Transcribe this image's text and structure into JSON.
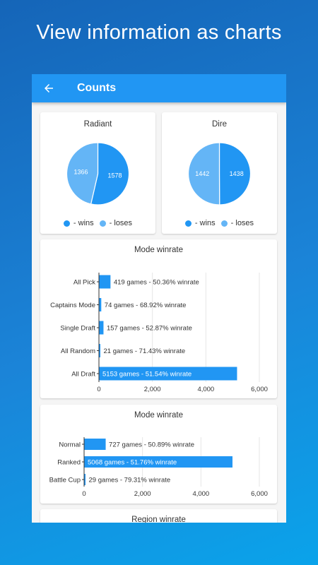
{
  "promo_title": "View information as charts",
  "appbar": {
    "title": "Counts",
    "back_icon": "arrow-back-icon"
  },
  "colors": {
    "primary": "#2196f3",
    "wins": "#2196f3",
    "loses": "#64b5f6"
  },
  "legend": {
    "wins": "- wins",
    "loses": "- loses"
  },
  "chart_data": [
    {
      "type": "pie",
      "title": "Radiant",
      "labels": [
        "- wins",
        "- loses"
      ],
      "values": [
        1578,
        1366
      ]
    },
    {
      "type": "pie",
      "title": "Dire",
      "labels": [
        "- wins",
        "- loses"
      ],
      "values": [
        1438,
        1442
      ]
    },
    {
      "type": "bar",
      "orientation": "horizontal",
      "title": "Mode winrate",
      "categories": [
        "All Pick",
        "Captains Mode",
        "Single Draft",
        "All Random",
        "All Draft"
      ],
      "values": [
        419,
        74,
        157,
        21,
        5153
      ],
      "data_labels": [
        "419 games - 50.36% winrate",
        "74 games - 68.92% winrate",
        "157 games - 52.87% winrate",
        "21 games - 71.43% winrate",
        "5153 games - 51.54% winrate"
      ],
      "xlim": [
        0,
        6000
      ],
      "xticks": [
        "0",
        "2,000",
        "4,000",
        "6,000"
      ],
      "grid": true
    },
    {
      "type": "bar",
      "orientation": "horizontal",
      "title": "Mode winrate",
      "categories": [
        "Normal",
        "Ranked",
        "Battle Cup"
      ],
      "values": [
        727,
        5068,
        29
      ],
      "data_labels": [
        "727 games - 50.89% winrate",
        "5068 games - 51.76% winrate",
        "29 games - 79.31% winrate"
      ],
      "xlim": [
        0,
        6000
      ],
      "xticks": [
        "0",
        "2,000",
        "4,000",
        "6,000"
      ],
      "grid": true
    },
    {
      "type": "bar",
      "title": "Region winrate"
    }
  ]
}
